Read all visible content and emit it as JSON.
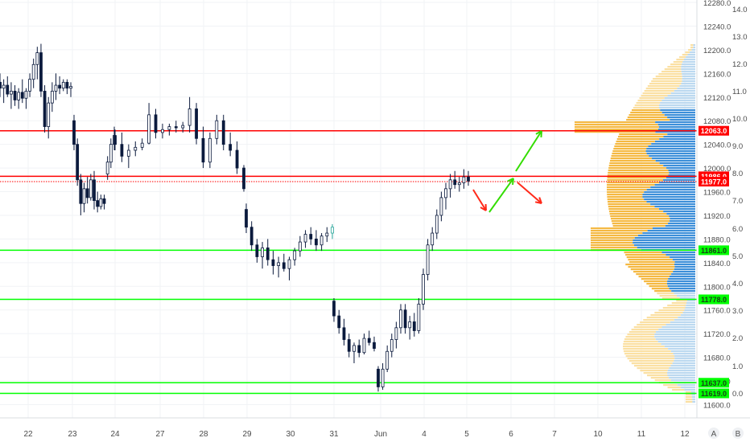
{
  "chart_data": {
    "type": "candlestick",
    "y_right_label_ticks": [
      11600,
      11640,
      11680,
      11720,
      11760,
      11800,
      11840,
      11880,
      11920,
      11960,
      12000,
      12040,
      12080,
      12120,
      12160,
      12200,
      12240,
      12280
    ],
    "y_right_tick_labels": [
      "11600.0",
      "11640.0",
      "11680.0",
      "11720.0",
      "11760.0",
      "11800.0",
      "11840.0",
      "11880.0",
      "11920.0",
      "11960.0",
      "12000.0",
      "12040.0",
      "12080.0",
      "12120.0",
      "12160.0",
      "12200.0",
      "12240.0",
      "12280.0"
    ],
    "ylim": [
      11580,
      12290
    ],
    "y_secondary_ticks": [
      "0.0",
      "1.0",
      "2.0",
      "3.0",
      "4.0",
      "5.0",
      "6.0",
      "7.0",
      "8.0",
      "9.0",
      "10.0",
      "11.0",
      "12.0",
      "13.0",
      "14.0"
    ],
    "x_tick_labels": [
      "22",
      "23",
      "24",
      "27",
      "28",
      "29",
      "30",
      "31",
      "Jun",
      "4",
      "5",
      "6",
      "7",
      "10",
      "11",
      "12"
    ],
    "horizontal_levels": [
      {
        "value": 12063.0,
        "label": "12063.0",
        "color": "#ff0000",
        "style": "solid"
      },
      {
        "value": 11986.0,
        "label": "11986.0",
        "color": "#ff0000",
        "style": "solid"
      },
      {
        "value": 11977.0,
        "label": "11977.0",
        "color": "#ff0000",
        "style": "dotted"
      },
      {
        "value": 11861.0,
        "label": "11861.0",
        "color": "#00ff00",
        "style": "solid"
      },
      {
        "value": 11778.0,
        "label": "11778.0",
        "color": "#00ff00",
        "style": "solid"
      },
      {
        "value": 11637.0,
        "label": "11637.0",
        "color": "#00ff00",
        "style": "solid"
      },
      {
        "value": 11619.0,
        "label": "11619.0",
        "color": "#00ff00",
        "style": "solid"
      }
    ],
    "candles": [
      {
        "o": 12145,
        "h": 12160,
        "l": 12120,
        "c": 12135
      },
      {
        "o": 12135,
        "h": 12150,
        "l": 12110,
        "c": 12140
      },
      {
        "o": 12140,
        "h": 12155,
        "l": 12120,
        "c": 12125
      },
      {
        "o": 12125,
        "h": 12145,
        "l": 12100,
        "c": 12130
      },
      {
        "o": 12130,
        "h": 12140,
        "l": 12105,
        "c": 12115
      },
      {
        "o": 12115,
        "h": 12135,
        "l": 12100,
        "c": 12128
      },
      {
        "o": 12128,
        "h": 12150,
        "l": 12110,
        "c": 12118
      },
      {
        "o": 12118,
        "h": 12135,
        "l": 12100,
        "c": 12130
      },
      {
        "o": 12130,
        "h": 12160,
        "l": 12120,
        "c": 12150
      },
      {
        "o": 12150,
        "h": 12185,
        "l": 12135,
        "c": 12175
      },
      {
        "o": 12175,
        "h": 12205,
        "l": 12150,
        "c": 12195
      },
      {
        "o": 12195,
        "h": 12210,
        "l": 12120,
        "c": 12130
      },
      {
        "o": 12130,
        "h": 12140,
        "l": 12060,
        "c": 12070
      },
      {
        "o": 12070,
        "h": 12120,
        "l": 12050,
        "c": 12110
      },
      {
        "o": 12110,
        "h": 12145,
        "l": 12095,
        "c": 12130
      },
      {
        "o": 12130,
        "h": 12160,
        "l": 12115,
        "c": 12140
      },
      {
        "o": 12140,
        "h": 12155,
        "l": 12125,
        "c": 12135
      },
      {
        "o": 12135,
        "h": 12150,
        "l": 12130,
        "c": 12145
      },
      {
        "o": 12145,
        "h": 12150,
        "l": 12125,
        "c": 12135
      },
      {
        "o": 12135,
        "h": 12145,
        "l": 12120,
        "c": 12138
      },
      {
        "o": 12080,
        "h": 12090,
        "l": 12030,
        "c": 12040
      },
      {
        "o": 12040,
        "h": 12050,
        "l": 11970,
        "c": 11980
      },
      {
        "o": 11980,
        "h": 11990,
        "l": 11920,
        "c": 11940
      },
      {
        "o": 11940,
        "h": 11975,
        "l": 11925,
        "c": 11965
      },
      {
        "o": 11965,
        "h": 11985,
        "l": 11940,
        "c": 11950
      },
      {
        "o": 11950,
        "h": 11990,
        "l": 11945,
        "c": 11980
      },
      {
        "o": 11980,
        "h": 11995,
        "l": 11930,
        "c": 11945
      },
      {
        "o": 11945,
        "h": 11960,
        "l": 11925,
        "c": 11935
      },
      {
        "o": 11935,
        "h": 11955,
        "l": 11930,
        "c": 11948
      },
      {
        "o": 11948,
        "h": 11955,
        "l": 11930,
        "c": 11940
      },
      {
        "o": 11990,
        "h": 12020,
        "l": 11980,
        "c": 12010
      },
      {
        "o": 12010,
        "h": 12050,
        "l": 12000,
        "c": 12040
      },
      {
        "o": 12040,
        "h": 12070,
        "l": 12030,
        "c": 12055
      },
      {
        "o": 12055,
        "h": 12065,
        "l": 12030,
        "c": 12040
      },
      {
        "o": 12040,
        "h": 12060,
        "l": 12010,
        "c": 12020
      },
      {
        "o": 12020,
        "h": 12040,
        "l": 12000,
        "c": 12030
      },
      {
        "o": 12030,
        "h": 12045,
        "l": 12020,
        "c": 12035
      },
      {
        "o": 12035,
        "h": 12050,
        "l": 12030,
        "c": 12042
      },
      {
        "o": 12042,
        "h": 12110,
        "l": 12040,
        "c": 12090
      },
      {
        "o": 12090,
        "h": 12100,
        "l": 12050,
        "c": 12060
      },
      {
        "o": 12060,
        "h": 12075,
        "l": 12050,
        "c": 12065
      },
      {
        "o": 12065,
        "h": 12075,
        "l": 12055,
        "c": 12070
      },
      {
        "o": 12070,
        "h": 12080,
        "l": 12060,
        "c": 12068
      },
      {
        "o": 12068,
        "h": 12078,
        "l": 12060,
        "c": 12072
      },
      {
        "o": 12072,
        "h": 12120,
        "l": 12060,
        "c": 12100
      },
      {
        "o": 12100,
        "h": 12110,
        "l": 12040,
        "c": 12050
      },
      {
        "o": 12050,
        "h": 12070,
        "l": 12000,
        "c": 12010
      },
      {
        "o": 12010,
        "h": 12060,
        "l": 12000,
        "c": 12050
      },
      {
        "o": 12050,
        "h": 12090,
        "l": 12040,
        "c": 12080
      },
      {
        "o": 12080,
        "h": 12090,
        "l": 12030,
        "c": 12040
      },
      {
        "o": 12040,
        "h": 12060,
        "l": 12020,
        "c": 12030
      },
      {
        "o": 12030,
        "h": 12045,
        "l": 11990,
        "c": 12000
      },
      {
        "o": 12000,
        "h": 12005,
        "l": 11960,
        "c": 11965
      },
      {
        "o": 11930,
        "h": 11940,
        "l": 11890,
        "c": 11900
      },
      {
        "o": 11900,
        "h": 11910,
        "l": 11860,
        "c": 11870
      },
      {
        "o": 11870,
        "h": 11880,
        "l": 11840,
        "c": 11850
      },
      {
        "o": 11850,
        "h": 11875,
        "l": 11830,
        "c": 11865
      },
      {
        "o": 11865,
        "h": 11880,
        "l": 11835,
        "c": 11845
      },
      {
        "o": 11845,
        "h": 11860,
        "l": 11820,
        "c": 11835
      },
      {
        "o": 11835,
        "h": 11850,
        "l": 11815,
        "c": 11840
      },
      {
        "o": 11840,
        "h": 11855,
        "l": 11825,
        "c": 11830
      },
      {
        "o": 11830,
        "h": 11850,
        "l": 11810,
        "c": 11845
      },
      {
        "o": 11845,
        "h": 11865,
        "l": 11835,
        "c": 11860
      },
      {
        "o": 11860,
        "h": 11885,
        "l": 11850,
        "c": 11875
      },
      {
        "o": 11875,
        "h": 11895,
        "l": 11865,
        "c": 11888
      },
      {
        "o": 11888,
        "h": 11900,
        "l": 11870,
        "c": 11880
      },
      {
        "o": 11880,
        "h": 11895,
        "l": 11860,
        "c": 11870
      },
      {
        "o": 11870,
        "h": 11890,
        "l": 11860,
        "c": 11885
      },
      {
        "o": 11885,
        "h": 11900,
        "l": 11875,
        "c": 11890
      },
      {
        "o": 11890,
        "h": 11905,
        "l": 11880,
        "c": 11900
      },
      {
        "o": 11775,
        "h": 11780,
        "l": 11740,
        "c": 11750
      },
      {
        "o": 11750,
        "h": 11760,
        "l": 11720,
        "c": 11730
      },
      {
        "o": 11730,
        "h": 11745,
        "l": 11700,
        "c": 11710
      },
      {
        "o": 11710,
        "h": 11720,
        "l": 11680,
        "c": 11690
      },
      {
        "o": 11690,
        "h": 11705,
        "l": 11670,
        "c": 11700
      },
      {
        "o": 11700,
        "h": 11710,
        "l": 11680,
        "c": 11688
      },
      {
        "o": 11688,
        "h": 11720,
        "l": 11685,
        "c": 11712
      },
      {
        "o": 11712,
        "h": 11725,
        "l": 11700,
        "c": 11705
      },
      {
        "o": 11705,
        "h": 11715,
        "l": 11690,
        "c": 11695
      },
      {
        "o": 11660,
        "h": 11665,
        "l": 11622,
        "c": 11630
      },
      {
        "o": 11630,
        "h": 11670,
        "l": 11625,
        "c": 11660
      },
      {
        "o": 11660,
        "h": 11700,
        "l": 11655,
        "c": 11690
      },
      {
        "o": 11690,
        "h": 11720,
        "l": 11680,
        "c": 11710
      },
      {
        "o": 11710,
        "h": 11740,
        "l": 11695,
        "c": 11730
      },
      {
        "o": 11730,
        "h": 11770,
        "l": 11720,
        "c": 11760
      },
      {
        "o": 11760,
        "h": 11770,
        "l": 11720,
        "c": 11730
      },
      {
        "o": 11730,
        "h": 11750,
        "l": 11710,
        "c": 11740
      },
      {
        "o": 11740,
        "h": 11755,
        "l": 11715,
        "c": 11725
      },
      {
        "o": 11725,
        "h": 11780,
        "l": 11720,
        "c": 11770
      },
      {
        "o": 11770,
        "h": 11830,
        "l": 11760,
        "c": 11820
      },
      {
        "o": 11820,
        "h": 11880,
        "l": 11810,
        "c": 11870
      },
      {
        "o": 11870,
        "h": 11900,
        "l": 11860,
        "c": 11890
      },
      {
        "o": 11890,
        "h": 11930,
        "l": 11880,
        "c": 11920
      },
      {
        "o": 11920,
        "h": 11960,
        "l": 11910,
        "c": 11950
      },
      {
        "o": 11950,
        "h": 11975,
        "l": 11930,
        "c": 11965
      },
      {
        "o": 11965,
        "h": 11990,
        "l": 11950,
        "c": 11980
      },
      {
        "o": 11980,
        "h": 11995,
        "l": 11965,
        "c": 11972
      },
      {
        "o": 11972,
        "h": 11985,
        "l": 11960,
        "c": 11975
      },
      {
        "o": 11975,
        "h": 11998,
        "l": 11965,
        "c": 11985
      },
      {
        "o": 11985,
        "h": 11995,
        "l": 11970,
        "c": 11978
      }
    ],
    "colors": {
      "candle": "#0b1a3d",
      "last_candle_accent": "#26a69a",
      "vp_up": "#f5b942",
      "vp_down": "#3d8fd9",
      "vp_up_light": "#fbe0a3",
      "vp_down_light": "#bcd9f0",
      "grid": "#f1f3f6",
      "axis_text": "#4a4a4a",
      "label_red_bg": "#ff0000",
      "label_green_bg": "#00ff00",
      "arrow_red": "#ff2a1a",
      "arrow_green": "#33dd00"
    }
  },
  "axis_footer": {
    "a_label": "A",
    "b_label": "B"
  }
}
